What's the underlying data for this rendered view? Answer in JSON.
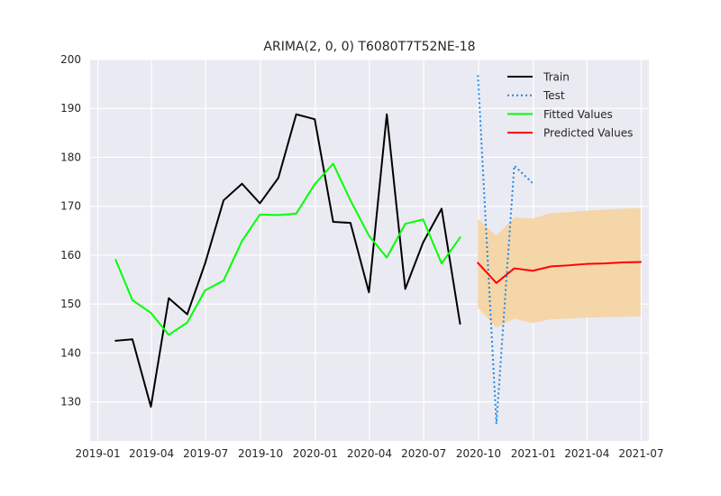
{
  "chart_data": {
    "type": "line",
    "title": "ARIMA(2, 0, 0) T6080T7T52NE-18",
    "xlabel": "",
    "ylabel": "",
    "xlim": [
      "2018-12-19",
      "2021-07-14"
    ],
    "ylim": [
      122,
      200
    ],
    "x_ticks": [
      "2019-01",
      "2019-04",
      "2019-07",
      "2019-10",
      "2020-01",
      "2020-04",
      "2020-07",
      "2020-10",
      "2021-01",
      "2021-04",
      "2021-07"
    ],
    "y_ticks": [
      130,
      140,
      150,
      160,
      170,
      180,
      190,
      200
    ],
    "grid": true,
    "legend_position": "top-right",
    "series": [
      {
        "name": "Train",
        "color": "#000000",
        "style": "solid",
        "points": [
          {
            "x": "2019-01-31",
            "y": 142.5
          },
          {
            "x": "2019-02-28",
            "y": 142.8
          },
          {
            "x": "2019-03-31",
            "y": 129.0
          },
          {
            "x": "2019-04-30",
            "y": 151.2
          },
          {
            "x": "2019-05-31",
            "y": 147.9
          },
          {
            "x": "2019-06-30",
            "y": 158.3
          },
          {
            "x": "2019-07-31",
            "y": 171.2
          },
          {
            "x": "2019-08-31",
            "y": 174.6
          },
          {
            "x": "2019-09-30",
            "y": 170.6
          },
          {
            "x": "2019-10-31",
            "y": 175.8
          },
          {
            "x": "2019-11-30",
            "y": 188.8
          },
          {
            "x": "2019-12-31",
            "y": 187.8
          },
          {
            "x": "2020-01-31",
            "y": 166.8
          },
          {
            "x": "2020-02-29",
            "y": 166.6
          },
          {
            "x": "2020-03-31",
            "y": 152.4
          },
          {
            "x": "2020-04-30",
            "y": 188.8
          },
          {
            "x": "2020-05-31",
            "y": 153.1
          },
          {
            "x": "2020-06-30",
            "y": 162.6
          },
          {
            "x": "2020-07-31",
            "y": 169.5
          },
          {
            "x": "2020-08-31",
            "y": 146.0
          }
        ]
      },
      {
        "name": "Test",
        "color": "#1e88e5",
        "style": "dotted",
        "points": [
          {
            "x": "2020-09-30",
            "y": 196.8
          },
          {
            "x": "2020-10-31",
            "y": 125.5
          },
          {
            "x": "2020-11-30",
            "y": 178.3
          },
          {
            "x": "2020-12-31",
            "y": 174.7
          }
        ]
      },
      {
        "name": "Fitted Values",
        "color": "#00ff00",
        "style": "solid",
        "points": [
          {
            "x": "2019-01-31",
            "y": 159.0
          },
          {
            "x": "2019-02-28",
            "y": 150.8
          },
          {
            "x": "2019-03-31",
            "y": 148.2
          },
          {
            "x": "2019-04-30",
            "y": 143.7
          },
          {
            "x": "2019-05-31",
            "y": 146.2
          },
          {
            "x": "2019-06-30",
            "y": 152.8
          },
          {
            "x": "2019-07-31",
            "y": 154.8
          },
          {
            "x": "2019-08-31",
            "y": 162.9
          },
          {
            "x": "2019-09-30",
            "y": 168.3
          },
          {
            "x": "2019-10-31",
            "y": 168.2
          },
          {
            "x": "2019-11-30",
            "y": 168.5
          },
          {
            "x": "2019-12-31",
            "y": 174.5
          },
          {
            "x": "2020-01-31",
            "y": 178.7
          },
          {
            "x": "2020-02-29",
            "y": 171.2
          },
          {
            "x": "2020-03-31",
            "y": 164.0
          },
          {
            "x": "2020-04-30",
            "y": 159.5
          },
          {
            "x": "2020-05-31",
            "y": 166.4
          },
          {
            "x": "2020-06-30",
            "y": 167.3
          },
          {
            "x": "2020-07-31",
            "y": 158.3
          },
          {
            "x": "2020-08-31",
            "y": 163.6
          }
        ]
      },
      {
        "name": "Predicted Values",
        "color": "#ff0000",
        "style": "solid",
        "points": [
          {
            "x": "2020-09-30",
            "y": 158.4
          },
          {
            "x": "2020-10-31",
            "y": 154.3
          },
          {
            "x": "2020-11-30",
            "y": 157.3
          },
          {
            "x": "2020-12-31",
            "y": 156.8
          },
          {
            "x": "2021-01-31",
            "y": 157.7
          },
          {
            "x": "2021-02-28",
            "y": 157.9
          },
          {
            "x": "2021-03-31",
            "y": 158.2
          },
          {
            "x": "2021-04-30",
            "y": 158.3
          },
          {
            "x": "2021-05-31",
            "y": 158.5
          },
          {
            "x": "2021-06-30",
            "y": 158.6
          }
        ]
      }
    ],
    "confidence_band": {
      "color": "#f5d5a4",
      "points": [
        {
          "x": "2020-09-30",
          "lower": 149.2,
          "upper": 167.4
        },
        {
          "x": "2020-10-31",
          "lower": 145.2,
          "upper": 164.0
        },
        {
          "x": "2020-11-30",
          "lower": 147.0,
          "upper": 167.7
        },
        {
          "x": "2020-12-31",
          "lower": 146.1,
          "upper": 167.5
        },
        {
          "x": "2021-01-31",
          "lower": 146.9,
          "upper": 168.6
        },
        {
          "x": "2021-02-28",
          "lower": 147.0,
          "upper": 168.8
        },
        {
          "x": "2021-03-31",
          "lower": 147.2,
          "upper": 169.1
        },
        {
          "x": "2021-04-30",
          "lower": 147.3,
          "upper": 169.3
        },
        {
          "x": "2021-05-31",
          "lower": 147.4,
          "upper": 169.5
        },
        {
          "x": "2021-06-30",
          "lower": 147.5,
          "upper": 169.6
        }
      ]
    }
  }
}
